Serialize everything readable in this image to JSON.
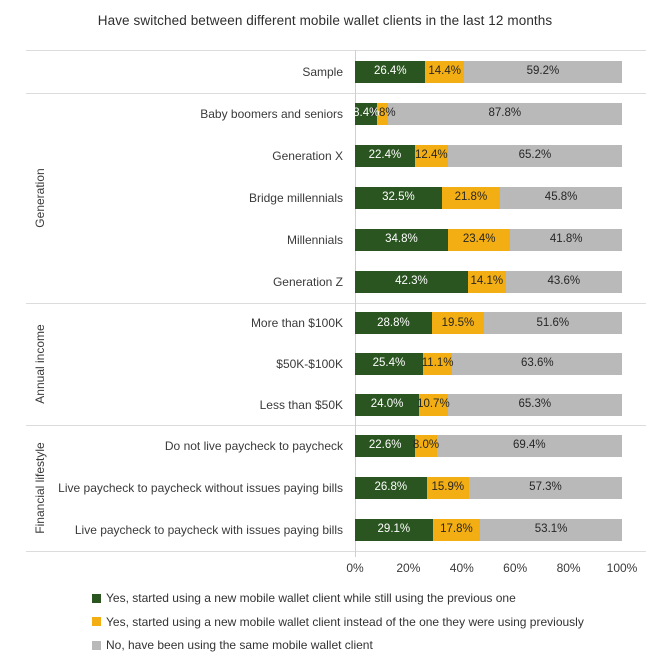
{
  "title": "Have switched between different mobile wallet clients in the last 12 months",
  "colors": {
    "series_green": "#2a5420",
    "series_yellow": "#f2ae13",
    "series_gray": "#b9b9b9",
    "separator_line": "#dcdcdc",
    "axis_line": "#cfcfcf",
    "text": "#3a3a3a"
  },
  "chart_data": {
    "type": "bar",
    "orientation": "horizontal",
    "stacked": true,
    "unit": "%",
    "title": "Have switched between different mobile wallet clients in the last 12 months",
    "xlim": [
      0,
      100
    ],
    "x_ticks": [
      "0%",
      "20%",
      "40%",
      "60%",
      "80%",
      "100%"
    ],
    "grid": false,
    "legend_position": "bottom-left",
    "series": [
      {
        "name": "Yes, started using a new mobile wallet client while still using the previous one",
        "color": "#2a5420"
      },
      {
        "name": "Yes, started using a new mobile wallet client instead of the one they were using previously",
        "color": "#f2ae13"
      },
      {
        "name": "No, have been using the same mobile wallet client",
        "color": "#b9b9b9"
      }
    ],
    "groups": [
      {
        "name": "",
        "rows": [
          {
            "label": "Sample",
            "values": [
              26.4,
              14.4,
              59.2
            ]
          }
        ]
      },
      {
        "name": "Generation",
        "rows": [
          {
            "label": "Baby boomers and seniors",
            "values": [
              8.4,
              3.8,
              87.8
            ]
          },
          {
            "label": "Generation X",
            "values": [
              22.4,
              12.4,
              65.2
            ]
          },
          {
            "label": "Bridge millennials",
            "values": [
              32.5,
              21.8,
              45.8
            ]
          },
          {
            "label": "Millennials",
            "values": [
              34.8,
              23.4,
              41.8
            ]
          },
          {
            "label": "Generation Z",
            "values": [
              42.3,
              14.1,
              43.6
            ]
          }
        ]
      },
      {
        "name": "Annual income",
        "rows": [
          {
            "label": "More than $100K",
            "values": [
              28.8,
              19.5,
              51.6
            ]
          },
          {
            "label": "$50K-$100K",
            "values": [
              25.4,
              11.1,
              63.6
            ]
          },
          {
            "label": "Less than $50K",
            "values": [
              24.0,
              10.7,
              65.3
            ]
          }
        ]
      },
      {
        "name": "Financial lifestyle",
        "rows": [
          {
            "label": "Do not live paycheck to paycheck",
            "values": [
              22.6,
              8.0,
              69.4
            ]
          },
          {
            "label": "Live paycheck to paycheck without issues paying bills",
            "values": [
              26.8,
              15.9,
              57.3
            ]
          },
          {
            "label": "Live paycheck to paycheck with issues paying bills",
            "values": [
              29.1,
              17.8,
              53.1
            ]
          }
        ]
      }
    ]
  }
}
